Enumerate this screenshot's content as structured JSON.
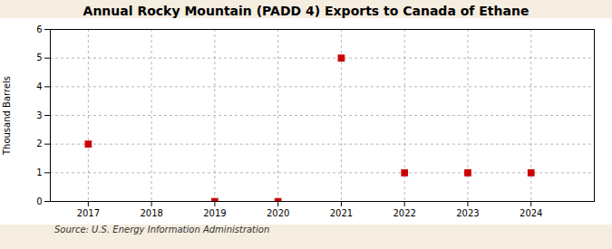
{
  "chart_data": {
    "type": "scatter",
    "title": "Annual Rocky Mountain (PADD 4) Exports to Canada of Ethane",
    "ylabel": "Thousand Barrels",
    "annotation": "Source: U.S. Energy Information Administration",
    "x": [
      2017,
      2019,
      2020,
      2021,
      2022,
      2023,
      2024
    ],
    "values": [
      2,
      0,
      0,
      5,
      1,
      1,
      1
    ],
    "color": "#cc0000",
    "marker": "square",
    "xlim": [
      2016.4,
      2025.0
    ],
    "xticks": [
      2017,
      2018,
      2019,
      2020,
      2021,
      2022,
      2023,
      2024
    ],
    "ylim": [
      0,
      6
    ],
    "yticks": [
      0,
      1,
      2,
      3,
      4,
      5,
      6
    ],
    "grid": true
  }
}
